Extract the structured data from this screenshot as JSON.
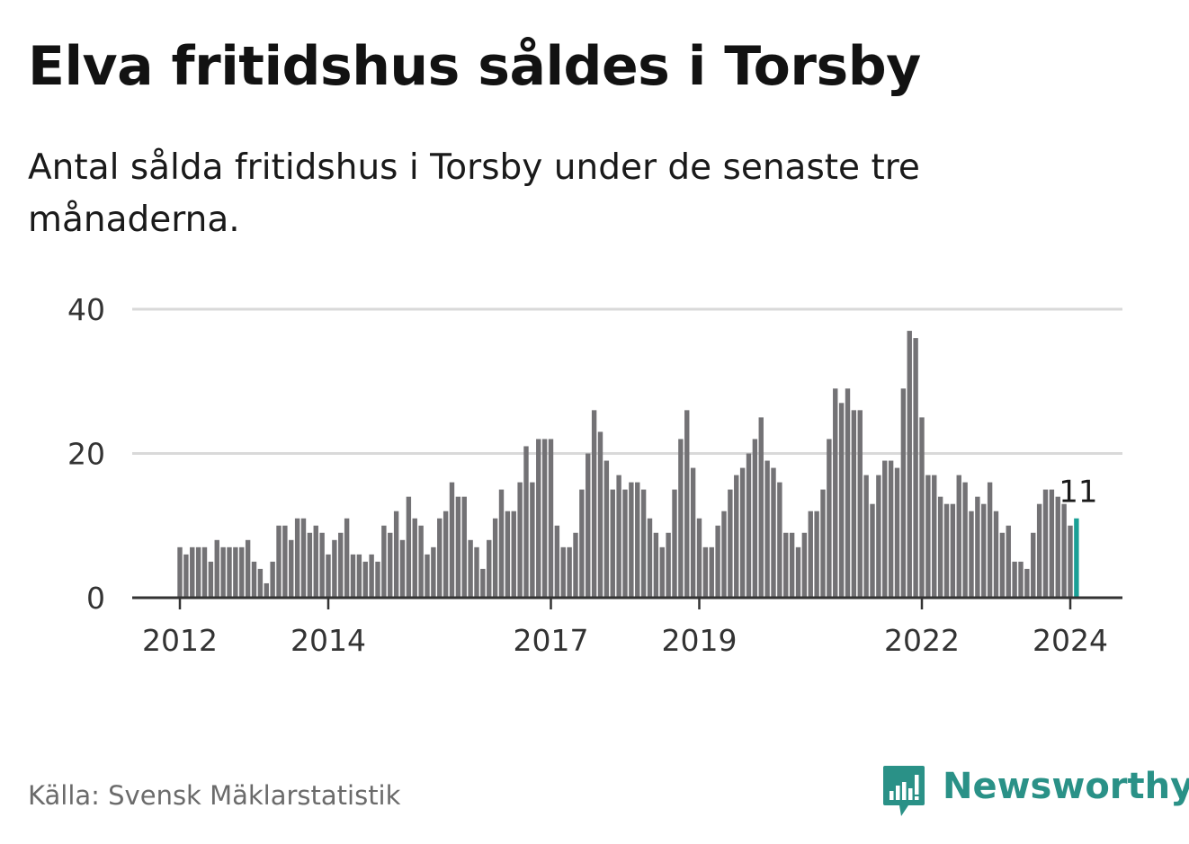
{
  "title": "Elva fritidshus såldes i Torsby",
  "subtitle": "Antal sålda fritidshus i Torsby under de senaste tre månaderna.",
  "source": "Källa: Svensk Mäklarstatistik",
  "brand": "Newsworthy",
  "colors": {
    "bar": "#737275",
    "highlight": "#1aa096",
    "grid": "#d9d9d9",
    "axis": "#333333",
    "brand": "#2a9187"
  },
  "chart_data": {
    "type": "bar",
    "title": "Elva fritidshus såldes i Torsby",
    "xlabel": "",
    "ylabel": "",
    "ylim": [
      0,
      40
    ],
    "yticks": [
      0,
      20,
      40
    ],
    "start": "2012-01",
    "xticks": [
      {
        "label": "2012",
        "index": 0
      },
      {
        "label": "2014",
        "index": 24
      },
      {
        "label": "2017",
        "index": 60
      },
      {
        "label": "2019",
        "index": 84
      },
      {
        "label": "2022",
        "index": 120
      },
      {
        "label": "2024",
        "index": 144
      }
    ],
    "values": [
      7,
      6,
      7,
      7,
      7,
      5,
      8,
      7,
      7,
      7,
      7,
      8,
      5,
      4,
      2,
      5,
      10,
      10,
      8,
      11,
      11,
      9,
      10,
      9,
      6,
      8,
      9,
      11,
      6,
      6,
      5,
      6,
      5,
      10,
      9,
      12,
      8,
      14,
      11,
      10,
      6,
      7,
      11,
      12,
      16,
      14,
      14,
      8,
      7,
      4,
      8,
      11,
      15,
      12,
      12,
      16,
      21,
      16,
      22,
      22,
      22,
      10,
      7,
      7,
      9,
      15,
      20,
      26,
      23,
      19,
      15,
      17,
      15,
      16,
      16,
      15,
      11,
      9,
      7,
      9,
      15,
      22,
      26,
      18,
      11,
      7,
      7,
      10,
      12,
      15,
      17,
      18,
      20,
      22,
      25,
      19,
      18,
      16,
      9,
      9,
      7,
      9,
      12,
      12,
      15,
      22,
      29,
      27,
      29,
      26,
      26,
      17,
      13,
      17,
      19,
      19,
      18,
      29,
      37,
      36,
      25,
      17,
      17,
      14,
      13,
      13,
      17,
      16,
      12,
      14,
      13,
      16,
      12,
      9,
      10,
      5,
      5,
      4,
      9,
      13,
      15,
      15,
      14,
      13,
      10,
      11
    ],
    "highlight_index": 145,
    "highlight_label": "11"
  }
}
